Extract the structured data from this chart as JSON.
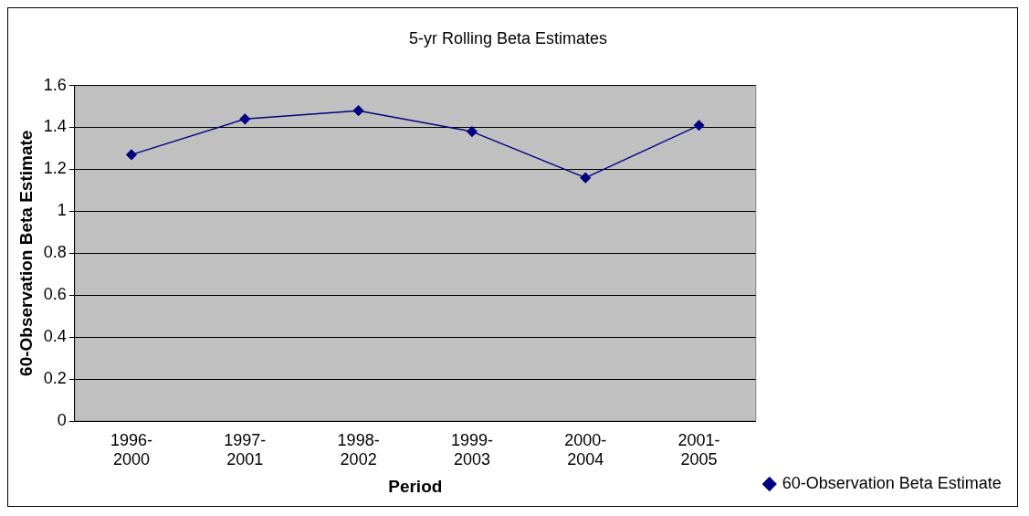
{
  "chart_data": {
    "type": "line",
    "title": "5-yr Rolling Beta Estimates",
    "xlabel": "Period",
    "ylabel": "60-Observation Beta Estimate",
    "categories": [
      "1996-\n2000",
      "1997-\n2001",
      "1998-\n2002",
      "1999-\n2003",
      "2000-\n2004",
      "2001-\n2005"
    ],
    "series": [
      {
        "name": "60-Observation Beta Estimate",
        "color": "#000080",
        "values": [
          1.27,
          1.44,
          1.48,
          1.38,
          1.16,
          1.41
        ]
      }
    ],
    "ylim": [
      0,
      1.6
    ],
    "yticks": [
      0,
      0.2,
      0.4,
      0.6,
      0.8,
      1,
      1.2,
      1.4,
      1.6
    ],
    "grid": "y",
    "legend": "right",
    "marker": "diamond",
    "line_style": "solid"
  }
}
